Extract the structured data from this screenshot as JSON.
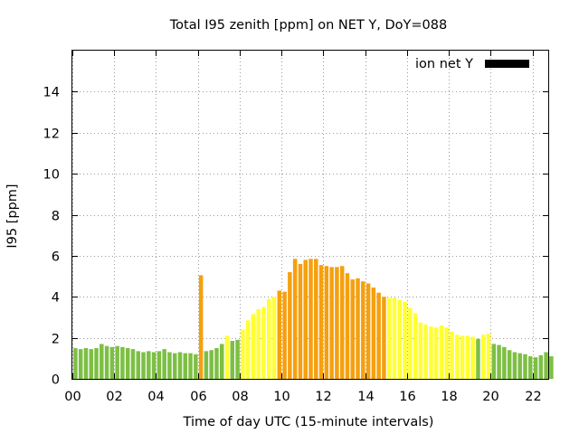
{
  "chart_data": {
    "type": "bar",
    "title": "Total I95 zenith [ppm] on NET Y, DoY=088",
    "xlabel": "Time of day UTC (15-minute intervals)",
    "ylabel": "I95 [ppm]",
    "xlim": [
      0,
      22.75
    ],
    "ylim": [
      0,
      16
    ],
    "xticks": [
      "00",
      "02",
      "04",
      "06",
      "08",
      "10",
      "12",
      "14",
      "16",
      "18",
      "20",
      "22"
    ],
    "yticks": [
      "0",
      "2",
      "4",
      "6",
      "8",
      "10",
      "12",
      "14"
    ],
    "grid": true,
    "legend": {
      "label": "ion net Y",
      "placement": "top-right",
      "color": "#000000"
    },
    "interval_hours": 0.25,
    "level_colors": {
      "green": "#7dbf44",
      "yellow": "#ffff33",
      "orange": "#f5a00f"
    },
    "values": [
      1.5,
      1.45,
      1.5,
      1.45,
      1.5,
      1.7,
      1.6,
      1.55,
      1.6,
      1.55,
      1.5,
      1.45,
      1.35,
      1.3,
      1.35,
      1.3,
      1.35,
      1.45,
      1.3,
      1.25,
      1.3,
      1.25,
      1.25,
      1.2,
      5.05,
      1.35,
      1.4,
      1.5,
      1.7,
      2.1,
      1.85,
      1.9,
      2.4,
      2.85,
      3.15,
      3.4,
      3.5,
      3.9,
      4.0,
      4.3,
      4.25,
      5.2,
      5.85,
      5.6,
      5.8,
      5.85,
      5.85,
      5.55,
      5.5,
      5.45,
      5.45,
      5.5,
      5.15,
      4.85,
      4.9,
      4.75,
      4.65,
      4.45,
      4.2,
      4.0,
      3.95,
      3.95,
      3.85,
      3.75,
      3.45,
      3.2,
      2.75,
      2.65,
      2.55,
      2.5,
      2.6,
      2.5,
      2.3,
      2.15,
      2.1,
      2.1,
      2.05,
      1.95,
      2.15,
      2.2,
      1.7,
      1.65,
      1.55,
      1.4,
      1.3,
      1.25,
      1.2,
      1.1,
      1.05,
      1.15,
      1.3,
      1.1
    ],
    "levels": [
      "green",
      "green",
      "green",
      "green",
      "green",
      "green",
      "green",
      "green",
      "green",
      "green",
      "green",
      "green",
      "green",
      "green",
      "green",
      "green",
      "green",
      "green",
      "green",
      "green",
      "green",
      "green",
      "green",
      "green",
      "orange",
      "green",
      "green",
      "green",
      "green",
      "yellow",
      "green",
      "green",
      "yellow",
      "yellow",
      "yellow",
      "yellow",
      "yellow",
      "yellow",
      "yellow",
      "orange",
      "orange",
      "orange",
      "orange",
      "orange",
      "orange",
      "orange",
      "orange",
      "orange",
      "orange",
      "orange",
      "orange",
      "orange",
      "orange",
      "orange",
      "orange",
      "orange",
      "orange",
      "orange",
      "orange",
      "orange",
      "yellow",
      "yellow",
      "yellow",
      "yellow",
      "yellow",
      "yellow",
      "yellow",
      "yellow",
      "yellow",
      "yellow",
      "yellow",
      "yellow",
      "yellow",
      "yellow",
      "yellow",
      "yellow",
      "yellow",
      "green",
      "yellow",
      "yellow",
      "green",
      "green",
      "green",
      "green",
      "green",
      "green",
      "green",
      "green",
      "green",
      "green",
      "green",
      "green"
    ]
  }
}
